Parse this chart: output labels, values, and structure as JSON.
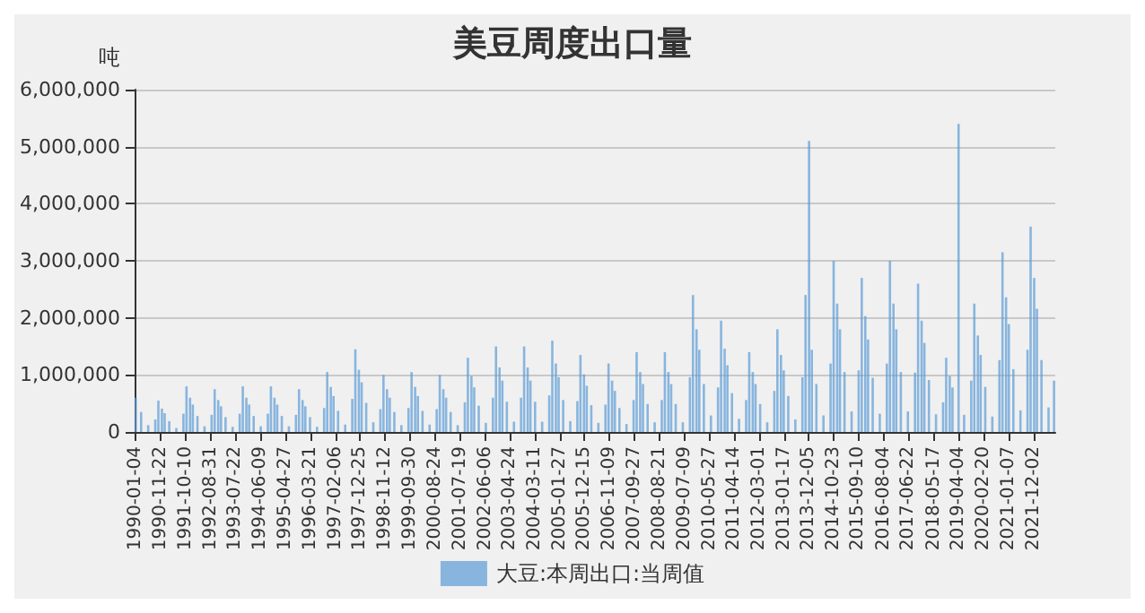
{
  "chart_data": {
    "type": "bar",
    "title": "美豆周度出口量",
    "ylabel": "吨",
    "x": [
      "1990-01-04",
      "1990-03-15",
      "1990-06-15",
      "1990-09-15",
      "1990-10-25",
      "1990-12-10",
      "1991-01-15",
      "1991-03-15",
      "1991-06-15",
      "1991-09-15",
      "1991-10-25",
      "1991-12-10",
      "1992-01-15",
      "1992-03-15",
      "1992-06-15",
      "1992-09-15",
      "1992-10-25",
      "1992-12-10",
      "1993-01-15",
      "1993-03-15",
      "1993-06-15",
      "1993-09-15",
      "1993-10-25",
      "1993-12-10",
      "1994-01-15",
      "1994-03-15",
      "1994-06-15",
      "1994-09-15",
      "1994-10-25",
      "1994-12-10",
      "1995-01-15",
      "1995-03-15",
      "1995-06-15",
      "1995-09-15",
      "1995-10-25",
      "1995-12-10",
      "1996-01-15",
      "1996-03-15",
      "1996-06-15",
      "1996-09-15",
      "1996-10-25",
      "1996-12-10",
      "1997-01-15",
      "1997-03-15",
      "1997-06-15",
      "1997-09-15",
      "1997-10-25",
      "1997-12-10",
      "1998-01-15",
      "1998-03-15",
      "1998-06-15",
      "1998-09-15",
      "1998-10-25",
      "1998-12-10",
      "1999-01-15",
      "1999-03-15",
      "1999-06-15",
      "1999-09-15",
      "1999-10-25",
      "1999-12-10",
      "2000-01-15",
      "2000-03-15",
      "2000-06-15",
      "2000-09-15",
      "2000-10-25",
      "2000-12-10",
      "2001-01-15",
      "2001-03-15",
      "2001-06-15",
      "2001-09-15",
      "2001-10-25",
      "2001-12-10",
      "2002-01-15",
      "2002-03-15",
      "2002-06-15",
      "2002-09-15",
      "2002-10-25",
      "2002-12-10",
      "2003-01-15",
      "2003-03-15",
      "2003-06-15",
      "2003-09-15",
      "2003-10-25",
      "2003-12-10",
      "2004-01-15",
      "2004-03-15",
      "2004-06-15",
      "2004-09-15",
      "2004-10-25",
      "2004-12-10",
      "2005-01-15",
      "2005-03-15",
      "2005-06-15",
      "2005-09-15",
      "2005-10-25",
      "2005-12-10",
      "2006-01-15",
      "2006-03-15",
      "2006-06-15",
      "2006-09-15",
      "2006-10-25",
      "2006-12-10",
      "2007-01-15",
      "2007-03-15",
      "2007-06-15",
      "2007-09-15",
      "2007-10-25",
      "2007-12-10",
      "2008-01-15",
      "2008-03-15",
      "2008-06-15",
      "2008-09-15",
      "2008-10-25",
      "2008-12-10",
      "2009-01-15",
      "2009-03-15",
      "2009-06-15",
      "2009-09-15",
      "2009-10-25",
      "2009-12-10",
      "2010-01-15",
      "2010-03-15",
      "2010-06-15",
      "2010-09-15",
      "2010-10-25",
      "2010-12-10",
      "2011-01-15",
      "2011-03-15",
      "2011-06-15",
      "2011-09-15",
      "2011-10-25",
      "2011-12-10",
      "2012-01-15",
      "2012-03-15",
      "2012-06-15",
      "2012-09-15",
      "2012-10-25",
      "2012-12-10",
      "2013-01-15",
      "2013-03-15",
      "2013-06-15",
      "2013-09-15",
      "2013-10-25",
      "2013-12-10",
      "2014-01-15",
      "2014-03-15",
      "2014-06-15",
      "2014-09-15",
      "2014-10-25",
      "2014-12-10",
      "2015-01-15",
      "2015-03-15",
      "2015-06-15",
      "2015-09-15",
      "2015-10-25",
      "2015-12-10",
      "2016-01-15",
      "2016-03-15",
      "2016-06-15",
      "2016-09-15",
      "2016-10-25",
      "2016-12-10",
      "2017-01-15",
      "2017-03-15",
      "2017-06-15",
      "2017-09-15",
      "2017-10-25",
      "2017-12-10",
      "2018-01-15",
      "2018-03-15",
      "2018-06-15",
      "2018-09-15",
      "2018-10-25",
      "2018-12-10",
      "2019-01-15",
      "2019-04-04",
      "2019-06-15",
      "2019-09-15",
      "2019-10-25",
      "2019-12-10",
      "2020-01-15",
      "2020-03-15",
      "2020-06-15",
      "2020-09-15",
      "2020-10-25",
      "2020-12-10",
      "2021-01-15",
      "2021-03-15",
      "2021-06-15",
      "2021-09-15",
      "2021-10-25",
      "2021-12-10",
      "2022-01-15",
      "2022-03-15",
      "2022-06-15",
      "2022-08-25"
    ],
    "series": [
      {
        "name": "大豆:本周出口:当周值",
        "color": "#5b9bd5",
        "values": [
          600000,
          350000,
          120000,
          220000,
          550000,
          410000,
          330000,
          190000,
          70000,
          320000,
          800000,
          600000,
          480000,
          280000,
          100000,
          300000,
          750000,
          560000,
          450000,
          260000,
          90000,
          320000,
          800000,
          600000,
          480000,
          280000,
          100000,
          320000,
          800000,
          600000,
          480000,
          280000,
          100000,
          300000,
          750000,
          560000,
          450000,
          260000,
          90000,
          420000,
          1050000,
          790000,
          630000,
          370000,
          130000,
          580000,
          1450000,
          1090000,
          870000,
          510000,
          170000,
          400000,
          1000000,
          750000,
          600000,
          350000,
          120000,
          420000,
          1050000,
          790000,
          630000,
          370000,
          130000,
          400000,
          1000000,
          750000,
          600000,
          350000,
          120000,
          520000,
          1300000,
          980000,
          780000,
          460000,
          160000,
          600000,
          1500000,
          1130000,
          900000,
          530000,
          180000,
          600000,
          1500000,
          1130000,
          900000,
          530000,
          180000,
          640000,
          1600000,
          1200000,
          960000,
          560000,
          190000,
          540000,
          1350000,
          1010000,
          810000,
          470000,
          160000,
          480000,
          1200000,
          900000,
          720000,
          420000,
          140000,
          560000,
          1400000,
          1050000,
          840000,
          490000,
          170000,
          560000,
          1400000,
          1050000,
          840000,
          490000,
          170000,
          960000,
          2400000,
          1800000,
          1440000,
          840000,
          290000,
          780000,
          1950000,
          1460000,
          1170000,
          680000,
          230000,
          560000,
          1400000,
          1050000,
          840000,
          490000,
          170000,
          720000,
          1800000,
          1350000,
          1080000,
          630000,
          220000,
          960000,
          2400000,
          5100000,
          1440000,
          840000,
          290000,
          1200000,
          3000000,
          2250000,
          1800000,
          1050000,
          360000,
          1080000,
          2700000,
          2030000,
          1620000,
          950000,
          320000,
          1200000,
          3000000,
          2250000,
          1800000,
          1050000,
          360000,
          1040000,
          2600000,
          1950000,
          1560000,
          910000,
          310000,
          520000,
          1300000,
          980000,
          780000,
          5400000,
          300000,
          900000,
          2250000,
          1690000,
          1350000,
          790000,
          270000,
          1260000,
          3150000,
          2360000,
          1890000,
          1100000,
          380000,
          1440000,
          3600000,
          2700000,
          2160000,
          1260000,
          430000,
          900000
        ]
      }
    ],
    "xlim": [
      "1989-12-20",
      "2022-09-10"
    ],
    "xticks": [
      "1990-01-04",
      "1990-11-22",
      "1991-10-10",
      "1992-08-31",
      "1993-07-22",
      "1994-06-09",
      "1995-04-27",
      "1996-03-21",
      "1997-02-06",
      "1997-12-25",
      "1998-11-12",
      "1999-09-30",
      "2000-08-24",
      "2001-07-19",
      "2002-06-06",
      "2003-04-24",
      "2004-03-11",
      "2005-01-27",
      "2005-12-15",
      "2006-11-09",
      "2007-09-27",
      "2008-08-21",
      "2009-07-09",
      "2010-05-27",
      "2011-04-14",
      "2012-03-01",
      "2013-01-17",
      "2013-12-05",
      "2014-10-23",
      "2015-09-10",
      "2016-08-04",
      "2017-06-22",
      "2018-05-17",
      "2019-04-04",
      "2020-02-20",
      "2021-01-07",
      "2021-12-02"
    ],
    "ylim": [
      0,
      6000000
    ],
    "yticks": [
      0,
      {
        "value": 1000000,
        "label": "1,000,000"
      },
      {
        "value": 2000000,
        "label": "2,000,000"
      },
      {
        "value": 3000000,
        "label": "3,000,000"
      },
      {
        "value": 4000000,
        "label": "4,000,000"
      },
      {
        "value": 5000000,
        "label": "5,000,000"
      },
      {
        "value": 6000000,
        "label": "6,000,000"
      }
    ],
    "grid": "y",
    "legend": "bottom"
  }
}
